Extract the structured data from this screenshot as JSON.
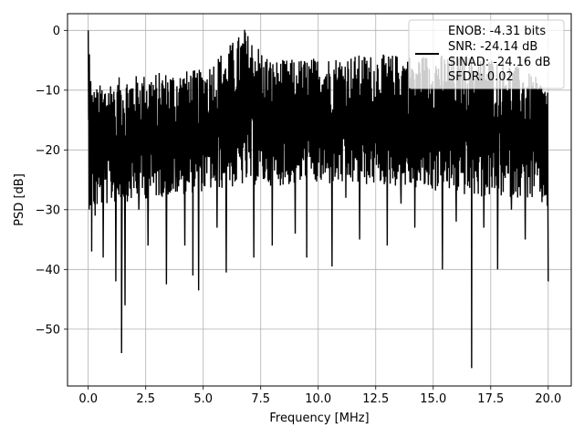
{
  "chart_data": {
    "type": "line",
    "title": "",
    "xlabel": "Frequency [MHz]",
    "ylabel": "PSD [dB]",
    "xlim": [
      -0.9,
      21.0
    ],
    "ylim": [
      -59.5,
      2.8
    ],
    "xticks": [
      0.0,
      2.5,
      5.0,
      7.5,
      10.0,
      12.5,
      15.0,
      17.5,
      20.0
    ],
    "xtick_labels": [
      "0.0",
      "2.5",
      "5.0",
      "7.5",
      "10.0",
      "12.5",
      "15.0",
      "17.5",
      "20.0"
    ],
    "yticks": [
      0,
      -10,
      -20,
      -30,
      -40,
      -50
    ],
    "ytick_labels": [
      "0",
      "−10",
      "−20",
      "−30",
      "−40",
      "−50"
    ],
    "grid": true,
    "legend_position": "top-right",
    "legend": [
      "ENOB: -4.31 bits",
      "SNR: -24.14 dB",
      "SINAD: -24.16 dB",
      "SFDR: 0.02"
    ],
    "series_color": "#000000",
    "series": [
      {
        "x": [
          0.0,
          0.02,
          0.05,
          0.08,
          0.11,
          0.15,
          0.2,
          0.3,
          0.45,
          0.65,
          0.9,
          1.2,
          1.45,
          1.6,
          1.85,
          2.2,
          2.6,
          3.0,
          3.4,
          3.8,
          4.2,
          4.55,
          4.8,
          5.2,
          5.6,
          6.0,
          6.4,
          6.8,
          7.2,
          7.6,
          8.0,
          8.5,
          9.0,
          9.5,
          10.0,
          10.6,
          11.2,
          11.8,
          12.4,
          13.0,
          13.6,
          14.2,
          14.8,
          15.4,
          16.0,
          16.67,
          17.2,
          17.8,
          18.4,
          19.0,
          19.5,
          20.0
        ],
        "y": [
          0.0,
          -15.0,
          -4.0,
          -20.0,
          -8.5,
          -37.0,
          -12.0,
          -31.0,
          -22.0,
          -38.0,
          -18.0,
          -42.0,
          -54.0,
          -46.0,
          -21.0,
          -30.0,
          -36.0,
          -19.0,
          -42.5,
          -27.0,
          -36.0,
          -41.0,
          -43.5,
          -21.0,
          -33.0,
          -40.5,
          -25.0,
          0.1,
          -38.0,
          -22.0,
          -36.0,
          -19.0,
          -34.0,
          -38.0,
          -20.0,
          -39.5,
          -28.0,
          -35.0,
          -18.0,
          -36.0,
          -29.0,
          -33.0,
          -20.0,
          -40.0,
          -32.0,
          -56.5,
          -33.0,
          -40.0,
          -30.0,
          -35.0,
          -22.0,
          -42.0
        ],
        "upper_envelope": [
          [
            0.3,
            -9.5
          ],
          [
            1.0,
            -8.0
          ],
          [
            3.0,
            -7.0
          ],
          [
            5.0,
            -6.5
          ],
          [
            6.8,
            0.1
          ],
          [
            8.0,
            -5.0
          ],
          [
            10.0,
            -4.5
          ],
          [
            12.0,
            -4.0
          ],
          [
            14.0,
            -4.0
          ],
          [
            16.0,
            -4.0
          ],
          [
            18.0,
            -4.5
          ],
          [
            20.0,
            -9.0
          ]
        ],
        "lower_envelope": [
          [
            0.3,
            -30.0
          ],
          [
            1.0,
            -29.0
          ],
          [
            3.0,
            -28.0
          ],
          [
            5.0,
            -27.0
          ],
          [
            7.0,
            -26.0
          ],
          [
            9.0,
            -26.0
          ],
          [
            11.0,
            -26.0
          ],
          [
            13.0,
            -26.0
          ],
          [
            15.0,
            -27.0
          ],
          [
            17.0,
            -28.0
          ],
          [
            19.0,
            -28.0
          ],
          [
            20.0,
            -30.0
          ]
        ]
      }
    ]
  }
}
